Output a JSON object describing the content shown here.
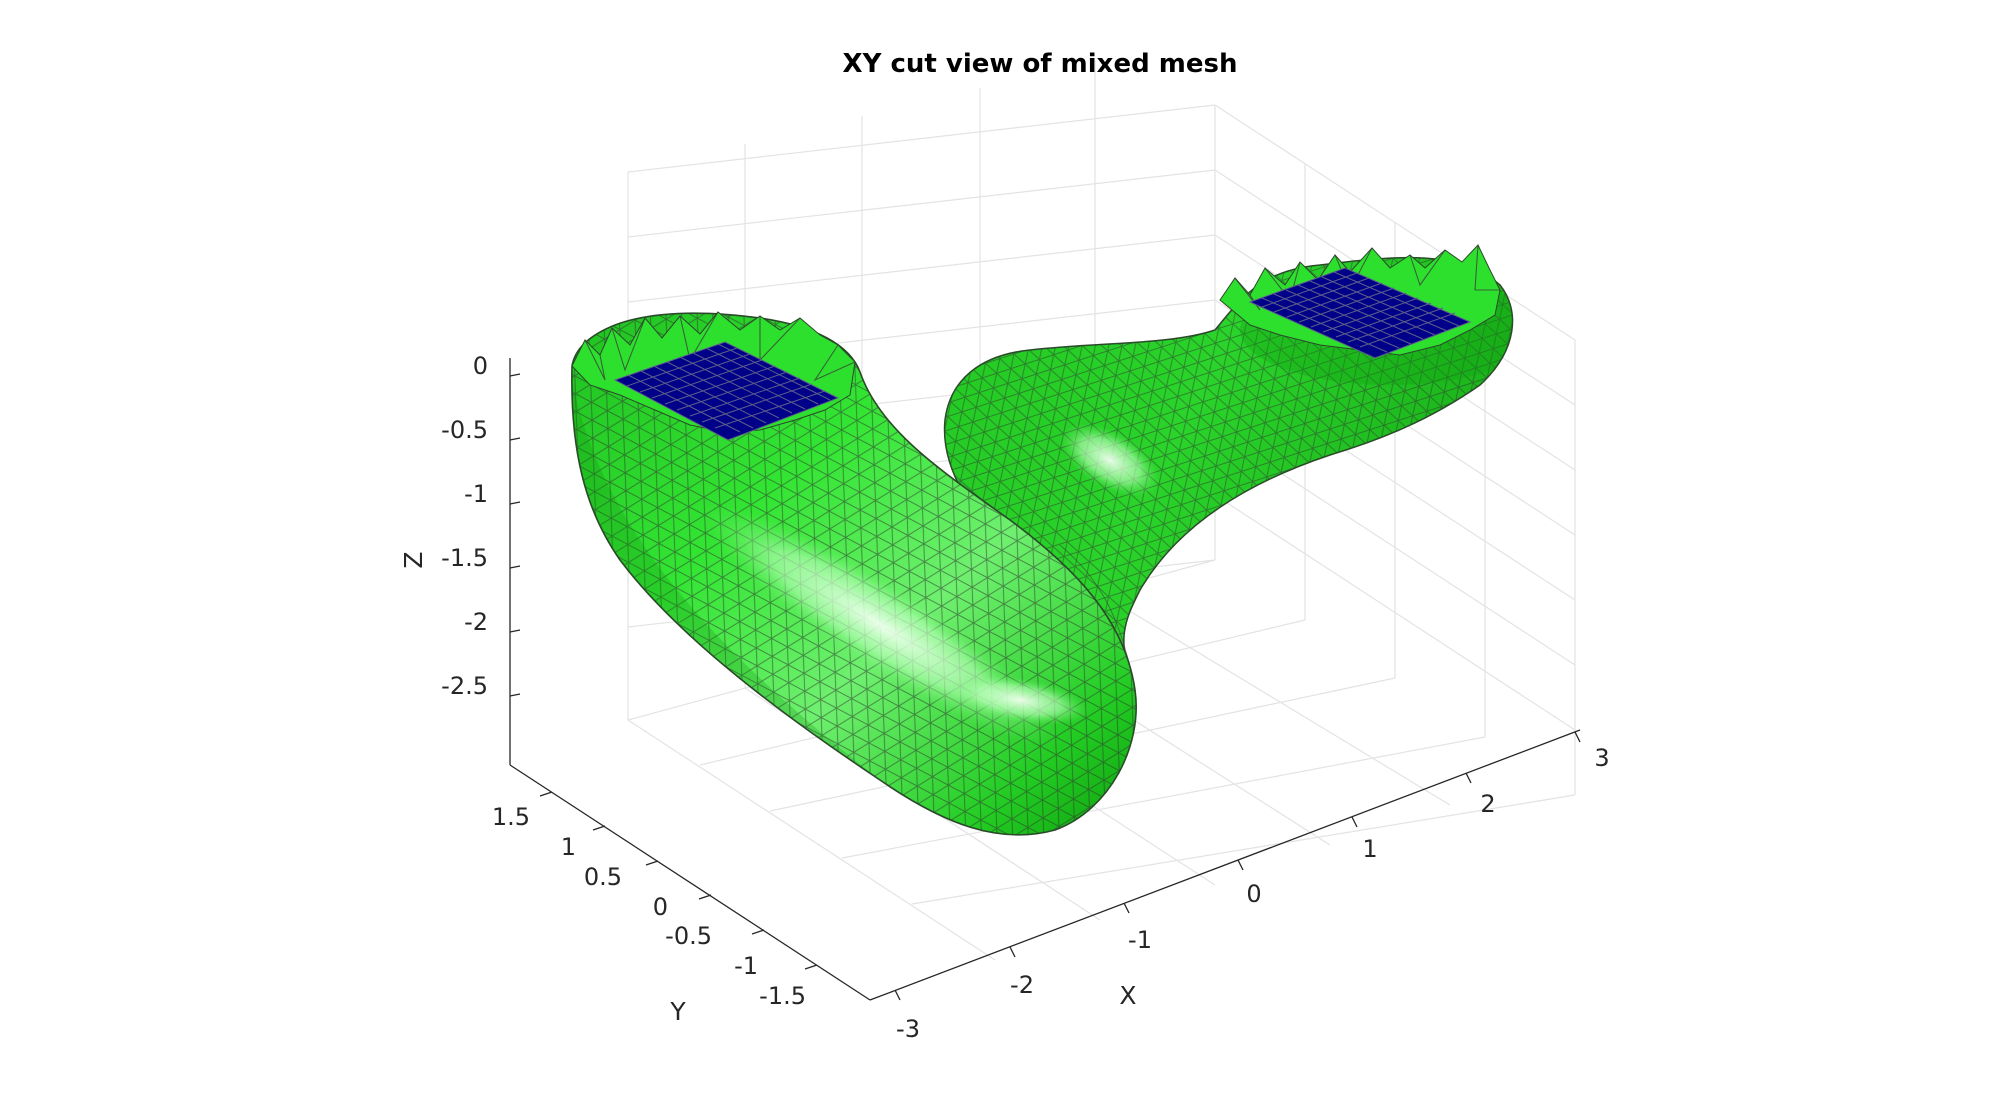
{
  "figure": {
    "title": "XY cut view of mixed mesh"
  },
  "axes": {
    "x": {
      "label": "X",
      "ticks": [
        "-3",
        "-2",
        "-1",
        "0",
        "1",
        "2",
        "3"
      ]
    },
    "y": {
      "label": "Y",
      "ticks": [
        "1.5",
        "1",
        "0.5",
        "0",
        "-0.5",
        "-1",
        "-1.5"
      ]
    },
    "z": {
      "label": "Z",
      "ticks": [
        "0",
        "-0.5",
        "-1",
        "-1.5",
        "-2",
        "-2.5"
      ]
    },
    "grid": true
  },
  "mesh": {
    "surface_color": "#22dd22",
    "highlight_color": "#d8ffd8",
    "cut_face_color": "#000088",
    "edge_color": "#404040",
    "elements": [
      "triangular surface elements",
      "quadrilateral cut faces"
    ]
  }
}
